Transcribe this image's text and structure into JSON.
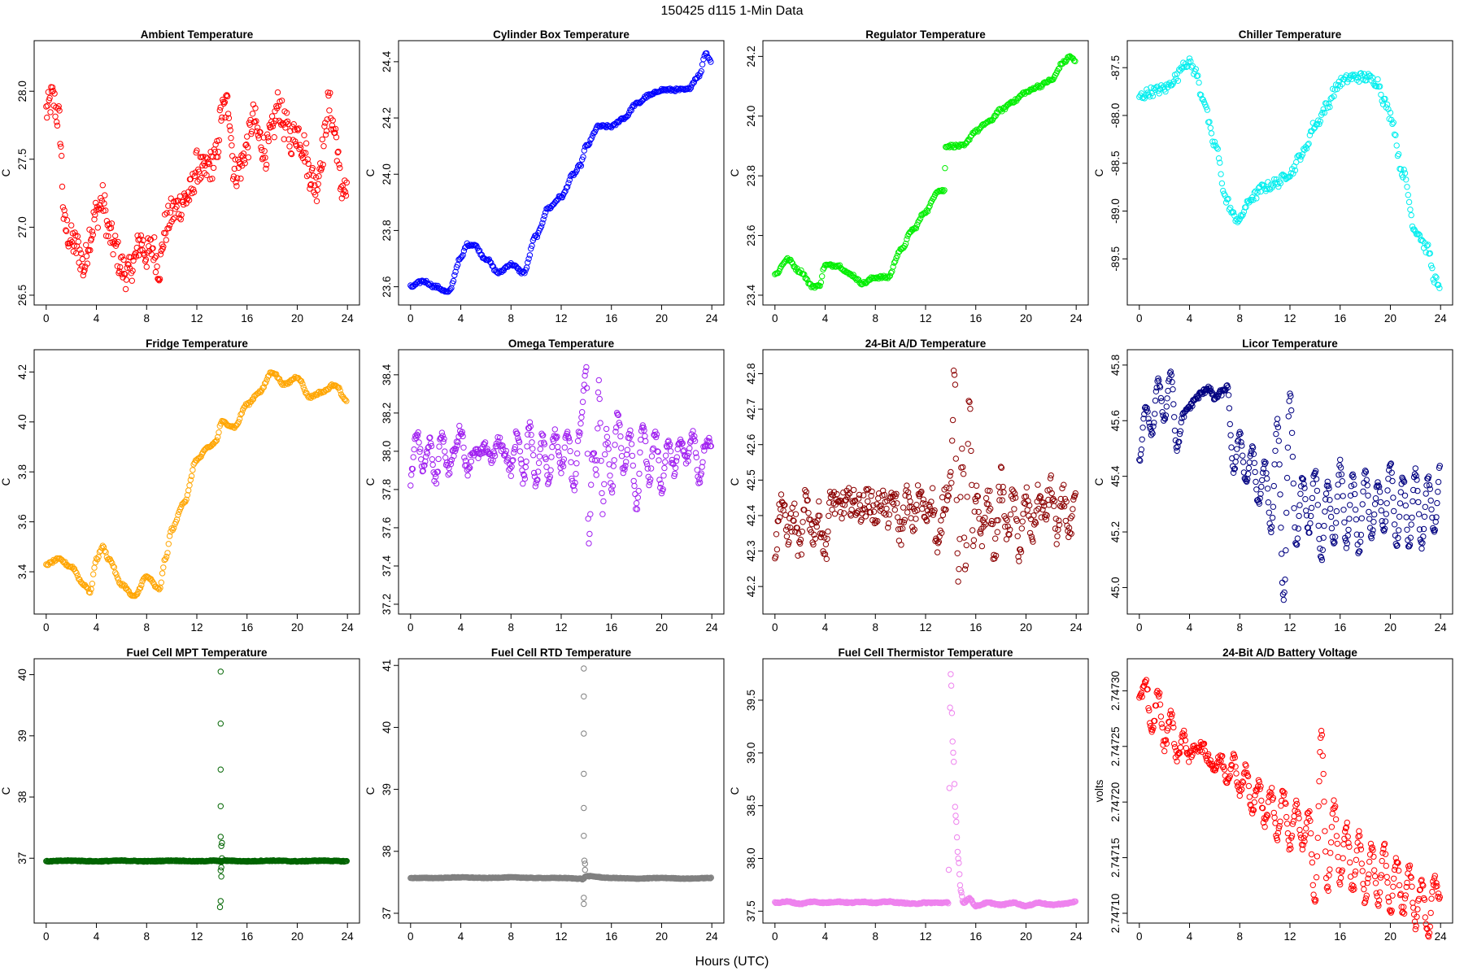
{
  "page_title": "150425   d115   1-Min Data",
  "x_axis_label": "Hours (UTC)",
  "chart_data": [
    {
      "type": "scatter",
      "title": "Ambient Temperature",
      "ylabel": "C",
      "color": "#ff0000",
      "xlim": [
        0,
        24
      ],
      "xticks": [
        0,
        4,
        8,
        12,
        16,
        20,
        24
      ],
      "ylim": [
        26.5,
        28.3
      ],
      "yticks": [
        "26.5",
        "27.0",
        "27.5",
        "28.0"
      ],
      "x": [
        0,
        0.5,
        1,
        1.5,
        2,
        2.5,
        3,
        3.5,
        4,
        4.5,
        5,
        5.5,
        6,
        6.5,
        7,
        7.5,
        8,
        8.5,
        9,
        9.5,
        10,
        10.5,
        11,
        11.5,
        12,
        12.5,
        13,
        13.5,
        14,
        14.5,
        15,
        15.5,
        16,
        16.5,
        17,
        17.5,
        18,
        18.5,
        19,
        19.5,
        20,
        20.5,
        21,
        21.5,
        22,
        22.5,
        23,
        23.5,
        24
      ],
      "y": [
        27.85,
        27.95,
        27.8,
        27.0,
        26.9,
        26.85,
        26.7,
        26.95,
        27.1,
        27.2,
        26.95,
        26.85,
        26.7,
        26.65,
        26.75,
        26.9,
        26.8,
        26.85,
        26.7,
        27.0,
        27.1,
        27.15,
        27.2,
        27.25,
        27.45,
        27.4,
        27.45,
        27.5,
        27.85,
        27.9,
        27.4,
        27.45,
        27.6,
        27.8,
        27.65,
        27.55,
        27.7,
        27.9,
        27.75,
        27.65,
        27.7,
        27.6,
        27.4,
        27.3,
        27.55,
        27.9,
        27.7,
        27.3,
        27.25
      ],
      "noise": 0.12,
      "density": 3
    },
    {
      "type": "scatter",
      "title": "Cylinder Box Temperature",
      "ylabel": "C",
      "color": "#0000ff",
      "xlim": [
        0,
        24
      ],
      "xticks": [
        0,
        4,
        8,
        12,
        16,
        20,
        24
      ],
      "ylim": [
        23.57,
        24.44
      ],
      "yticks": [
        "23.6",
        "23.8",
        "24.0",
        "24.2",
        "24.4"
      ],
      "x": [
        0,
        1,
        2,
        3,
        4,
        4.5,
        5,
        6,
        7,
        8,
        9,
        10,
        11,
        12,
        13,
        13.5,
        14,
        15,
        16,
        17,
        18,
        19,
        20,
        21,
        22,
        23,
        23.5,
        24
      ],
      "y": [
        23.6,
        23.62,
        23.6,
        23.58,
        23.7,
        23.75,
        23.75,
        23.7,
        23.65,
        23.68,
        23.65,
        23.78,
        23.88,
        23.92,
        24.0,
        24.03,
        24.1,
        24.17,
        24.17,
        24.2,
        24.25,
        24.28,
        24.3,
        24.3,
        24.3,
        24.35,
        24.43,
        24.4
      ],
      "noise": 0.005,
      "density": 2
    },
    {
      "type": "scatter",
      "title": "Regulator Temperature",
      "ylabel": "C",
      "color": "#00ee00",
      "xlim": [
        0,
        24
      ],
      "xticks": [
        0,
        4,
        8,
        12,
        16,
        20,
        24
      ],
      "ylim": [
        23.4,
        24.22
      ],
      "yticks": [
        "23.4",
        "23.6",
        "23.8",
        "24.0",
        "24.2"
      ],
      "x": [
        0,
        1,
        2,
        3,
        3.5,
        4,
        5,
        6,
        7,
        8,
        9,
        10,
        11,
        12,
        13,
        13.5,
        13.6,
        14,
        15,
        16,
        17,
        18,
        19,
        20,
        21,
        22,
        23,
        23.5,
        24
      ],
      "y": [
        23.47,
        23.52,
        23.48,
        23.43,
        23.43,
        23.5,
        23.5,
        23.47,
        23.44,
        23.46,
        23.46,
        23.55,
        23.62,
        23.68,
        23.75,
        23.75,
        23.9,
        23.9,
        23.9,
        23.95,
        23.98,
        24.02,
        24.05,
        24.08,
        24.1,
        24.12,
        24.18,
        24.2,
        24.18
      ],
      "noise": 0.005,
      "density": 2
    },
    {
      "type": "scatter",
      "title": "Chiller Temperature",
      "ylabel": "C",
      "color": "#00eeee",
      "xlim": [
        0,
        24
      ],
      "xticks": [
        0,
        4,
        8,
        12,
        16,
        20,
        24
      ],
      "ylim": [
        -89.88,
        -87.32
      ],
      "yticks": [
        "-89.5",
        "-89.0",
        "-88.5",
        "-88.0",
        "-87.5"
      ],
      "x": [
        0,
        1,
        2,
        3,
        3.5,
        4,
        4.5,
        5,
        6,
        7,
        7.5,
        8,
        8.5,
        9,
        10,
        11,
        12,
        13,
        14,
        15,
        15.5,
        16,
        17,
        18,
        19,
        19.5,
        20,
        21,
        22,
        23,
        23.5,
        24
      ],
      "y": [
        -87.8,
        -87.75,
        -87.72,
        -87.6,
        -87.45,
        -87.45,
        -87.55,
        -87.8,
        -88.3,
        -88.9,
        -89.05,
        -89.1,
        -88.95,
        -88.85,
        -88.75,
        -88.7,
        -88.6,
        -88.4,
        -88.1,
        -87.9,
        -87.75,
        -87.65,
        -87.6,
        -87.6,
        -87.65,
        -87.85,
        -88.0,
        -88.6,
        -89.2,
        -89.4,
        -89.7,
        -89.85
      ],
      "noise": 0.05,
      "density": 2
    },
    {
      "type": "scatter",
      "title": "Fridge Temperature",
      "ylabel": "C",
      "color": "#ffa500",
      "xlim": [
        0,
        24
      ],
      "xticks": [
        0,
        4,
        8,
        12,
        16,
        20,
        24
      ],
      "ylim": [
        3.27,
        4.25
      ],
      "yticks": [
        "3.4",
        "3.6",
        "3.8",
        "4.0",
        "4.2"
      ],
      "x": [
        0,
        1,
        2,
        3,
        3.5,
        4,
        4.5,
        5,
        6,
        7,
        8,
        9,
        9.5,
        10,
        11,
        12,
        13,
        13.5,
        14,
        15,
        16,
        17,
        18,
        19,
        20,
        21,
        22,
        23,
        24
      ],
      "y": [
        3.43,
        3.45,
        3.42,
        3.35,
        3.32,
        3.45,
        3.5,
        3.45,
        3.35,
        3.3,
        3.38,
        3.33,
        3.45,
        3.57,
        3.68,
        3.85,
        3.9,
        3.92,
        4.0,
        3.98,
        4.07,
        4.12,
        4.2,
        4.15,
        4.18,
        4.1,
        4.12,
        4.15,
        4.08
      ],
      "noise": 0.005,
      "density": 2
    },
    {
      "type": "scatter",
      "title": "Omega Temperature",
      "ylabel": "C",
      "color": "#a020f0",
      "xlim": [
        0,
        24
      ],
      "xticks": [
        0,
        4,
        8,
        12,
        16,
        20,
        24
      ],
      "ylim": [
        37.2,
        38.48
      ],
      "yticks": [
        "37.2",
        "37.4",
        "37.6",
        "37.8",
        "38.0",
        "38.2",
        "38.4"
      ],
      "x": [
        0,
        0.5,
        1,
        1.5,
        2,
        2.5,
        3,
        3.5,
        4,
        4.5,
        5,
        5.5,
        6,
        6.5,
        7,
        7.5,
        8,
        8.5,
        9,
        9.5,
        10,
        10.5,
        11,
        11.5,
        12,
        12.5,
        13,
        13.5,
        14,
        14.2,
        14.5,
        14.8,
        15,
        15.3,
        15.6,
        16,
        16.5,
        17,
        17.5,
        18,
        18.5,
        19,
        19.5,
        20,
        20.5,
        21,
        21.5,
        22,
        22.5,
        23,
        23.5,
        24
      ],
      "y": [
        37.85,
        38.1,
        37.9,
        38.05,
        37.85,
        38.1,
        37.9,
        38.0,
        38.12,
        37.9,
        38.0,
        37.98,
        38.02,
        37.96,
        38.05,
        38.0,
        37.9,
        38.1,
        37.85,
        38.15,
        37.82,
        38.1,
        37.85,
        38.1,
        37.9,
        38.1,
        37.8,
        38.12,
        38.45,
        37.5,
        38.0,
        37.9,
        38.35,
        37.7,
        38.1,
        37.8,
        38.2,
        37.9,
        38.1,
        37.7,
        38.15,
        37.85,
        38.1,
        37.8,
        38.05,
        37.9,
        38.05,
        37.95,
        38.1,
        37.85,
        38.05,
        38.05
      ],
      "noise": 0.03,
      "density": 3
    },
    {
      "type": "scatter",
      "title": "24-Bit A/D Temperature",
      "ylabel": "C",
      "color": "#8b0000",
      "xlim": [
        0,
        24
      ],
      "xticks": [
        0,
        4,
        8,
        12,
        16,
        20,
        24
      ],
      "ylim": [
        42.15,
        42.84
      ],
      "yticks": [
        "42.2",
        "42.3",
        "42.4",
        "42.5",
        "42.6",
        "42.7",
        "42.8"
      ],
      "x": [
        0,
        0.5,
        1,
        1.5,
        2,
        2.5,
        3,
        3.5,
        4,
        4.5,
        5,
        5.5,
        6,
        6.5,
        7,
        7.5,
        8,
        8.5,
        9,
        9.5,
        10,
        10.5,
        11,
        11.5,
        12,
        12.5,
        13,
        13.5,
        14,
        14.3,
        14.6,
        14.9,
        15.2,
        15.5,
        15.8,
        16,
        16.5,
        17,
        17.5,
        18,
        18.5,
        19,
        19.5,
        20,
        20.5,
        21,
        21.5,
        22,
        22.5,
        23,
        23.5,
        24
      ],
      "y": [
        42.3,
        42.45,
        42.35,
        42.4,
        42.3,
        42.45,
        42.35,
        42.4,
        42.3,
        42.45,
        42.42,
        42.43,
        42.44,
        42.43,
        42.42,
        42.45,
        42.4,
        42.45,
        42.4,
        42.45,
        42.35,
        42.45,
        42.38,
        42.46,
        42.4,
        42.45,
        42.3,
        42.45,
        42.5,
        42.8,
        42.2,
        42.6,
        42.25,
        42.75,
        42.3,
        42.45,
        42.35,
        42.45,
        42.3,
        42.5,
        42.35,
        42.45,
        42.3,
        42.45,
        42.35,
        42.45,
        42.4,
        42.48,
        42.35,
        42.45,
        42.35,
        42.45
      ],
      "noise": 0.04,
      "density": 3
    },
    {
      "type": "scatter",
      "title": "Licor Temperature",
      "ylabel": "C",
      "color": "#000080",
      "xlim": [
        0,
        24
      ],
      "xticks": [
        0,
        4,
        8,
        12,
        16,
        20,
        24
      ],
      "ylim": [
        44.94,
        45.82
      ],
      "yticks": [
        "45.0",
        "45.2",
        "45.4",
        "45.6",
        "45.8"
      ],
      "x": [
        0,
        0.5,
        1,
        1.5,
        2,
        2.5,
        3,
        3.5,
        4,
        4.5,
        5,
        5.5,
        6,
        6.5,
        7,
        7.5,
        8,
        8.5,
        9,
        9.5,
        10,
        10.5,
        11,
        11.5,
        12,
        12.5,
        13,
        13.5,
        14,
        14.5,
        15,
        15.5,
        16,
        16.5,
        17,
        17.5,
        18,
        18.5,
        19,
        19.5,
        20,
        20.5,
        21,
        21.5,
        22,
        22.5,
        23,
        23.5,
        24
      ],
      "y": [
        45.45,
        45.65,
        45.55,
        45.75,
        45.6,
        45.78,
        45.5,
        45.62,
        45.65,
        45.68,
        45.7,
        45.72,
        45.68,
        45.7,
        45.72,
        45.42,
        45.55,
        45.38,
        45.5,
        45.3,
        45.45,
        45.2,
        45.6,
        44.95,
        45.7,
        45.15,
        45.4,
        45.2,
        45.42,
        45.1,
        45.38,
        45.15,
        45.45,
        45.15,
        45.4,
        45.12,
        45.42,
        45.18,
        45.38,
        45.2,
        45.45,
        45.15,
        45.4,
        45.15,
        45.42,
        45.15,
        45.4,
        45.2,
        45.45
      ],
      "noise": 0.01,
      "density": 3
    },
    {
      "type": "scatter",
      "title": "Fuel Cell MPT Temperature",
      "ylabel": "C",
      "color": "#006400",
      "xlim": [
        0,
        24
      ],
      "xticks": [
        0,
        4,
        8,
        12,
        16,
        20,
        24
      ],
      "ylim": [
        36.1,
        40.1
      ],
      "yticks": [
        "37",
        "38",
        "39",
        "40"
      ],
      "x": [
        0,
        2,
        4,
        6,
        8,
        10,
        12,
        13.5,
        13.8,
        13.9,
        14.2,
        16,
        18,
        20,
        22,
        24
      ],
      "y": [
        36.95,
        36.96,
        36.95,
        36.96,
        36.95,
        36.96,
        36.95,
        36.96,
        36.95,
        36.95,
        36.96,
        36.95,
        36.96,
        36.95,
        36.96,
        36.95
      ],
      "noise": 0.008,
      "density": 3,
      "outliers": [
        [
          13.9,
          40.05
        ],
        [
          13.9,
          39.2
        ],
        [
          13.9,
          38.45
        ],
        [
          13.9,
          37.85
        ],
        [
          13.9,
          37.35
        ],
        [
          13.95,
          37.2
        ],
        [
          14.0,
          37.0
        ],
        [
          13.9,
          36.8
        ],
        [
          13.95,
          36.7
        ],
        [
          13.9,
          36.3
        ],
        [
          13.85,
          36.2
        ],
        [
          14.0,
          37.25
        ],
        [
          13.95,
          36.85
        ]
      ]
    },
    {
      "type": "scatter",
      "title": "Fuel Cell RTD Temperature",
      "ylabel": "C",
      "color": "#808080",
      "xlim": [
        0,
        24
      ],
      "xticks": [
        0,
        4,
        8,
        12,
        16,
        20,
        24
      ],
      "ylim": [
        37.0,
        40.95
      ],
      "yticks": [
        "37",
        "38",
        "39",
        "40",
        "41"
      ],
      "x": [
        0,
        2,
        4,
        6,
        8,
        10,
        12,
        13.5,
        13.7,
        14.0,
        16,
        18,
        20,
        22,
        24
      ],
      "y": [
        37.57,
        37.57,
        37.58,
        37.57,
        37.58,
        37.57,
        37.57,
        37.56,
        37.55,
        37.6,
        37.57,
        37.56,
        37.57,
        37.56,
        37.57
      ],
      "noise": 0.006,
      "density": 3,
      "outliers": [
        [
          13.8,
          40.95
        ],
        [
          13.8,
          40.5
        ],
        [
          13.8,
          39.9
        ],
        [
          13.8,
          39.25
        ],
        [
          13.8,
          38.7
        ],
        [
          13.8,
          38.25
        ],
        [
          13.85,
          37.85
        ],
        [
          13.9,
          37.8
        ],
        [
          13.8,
          37.25
        ],
        [
          13.8,
          37.15
        ],
        [
          13.9,
          37.7
        ]
      ]
    },
    {
      "type": "scatter",
      "title": "Fuel Cell Thermistor Temperature",
      "ylabel": "C",
      "color": "#ee82ee",
      "xlim": [
        0,
        24
      ],
      "xticks": [
        0,
        4,
        8,
        12,
        16,
        20,
        24
      ],
      "ylim": [
        37.48,
        39.8
      ],
      "yticks": [
        "37.5",
        "38.0",
        "38.5",
        "39.0",
        "39.5"
      ],
      "x": [
        0,
        1,
        2,
        3,
        4,
        5,
        6,
        7,
        8,
        9,
        10,
        11,
        12,
        13,
        13.8,
        14.0,
        14.2,
        14.4,
        14.6,
        14.8,
        15.0,
        15.5,
        16,
        17,
        18,
        19,
        20,
        21,
        22,
        23,
        24
      ],
      "y": [
        37.58,
        37.59,
        37.57,
        37.59,
        37.58,
        37.59,
        37.58,
        37.59,
        37.58,
        37.59,
        37.58,
        37.57,
        37.58,
        37.58,
        37.58,
        39.75,
        39.0,
        38.4,
        38.0,
        37.7,
        37.58,
        37.62,
        37.55,
        37.58,
        37.56,
        37.58,
        37.55,
        37.58,
        37.56,
        37.57,
        37.59
      ],
      "noise": 0.006,
      "density": 3
    },
    {
      "type": "scatter",
      "title": "24-Bit A/D Battery Voltage",
      "ylabel": "volts",
      "color": "#ff0000",
      "xlim": [
        0,
        24
      ],
      "xticks": [
        0,
        4,
        8,
        12,
        16,
        20,
        24
      ],
      "ylim": [
        2.7471,
        2.74732
      ],
      "yticks": [
        "2.74710",
        "2.74715",
        "2.74720",
        "2.74725",
        "2.74730"
      ],
      "x": [
        0,
        0.5,
        1,
        1.5,
        2,
        2.5,
        3,
        3.5,
        4,
        4.5,
        5,
        5.5,
        6,
        6.5,
        7,
        7.5,
        8,
        8.5,
        9,
        9.5,
        10,
        10.5,
        11,
        11.5,
        12,
        12.5,
        13,
        13.5,
        14,
        14.5,
        15,
        15.5,
        16,
        16.5,
        17,
        17.5,
        18,
        18.5,
        19,
        19.5,
        20,
        20.5,
        21,
        21.5,
        22,
        22.5,
        23,
        23.5,
        24
      ],
      "y": [
        2.74729,
        2.74731,
        2.74726,
        2.7473,
        2.74725,
        2.74728,
        2.74724,
        2.74726,
        2.74724,
        2.74725,
        2.74725,
        2.74724,
        2.74723,
        2.74724,
        2.74722,
        2.74724,
        2.74721,
        2.74723,
        2.74719,
        2.74722,
        2.74718,
        2.74721,
        2.74717,
        2.74721,
        2.74716,
        2.7472,
        2.74716,
        2.74719,
        2.74711,
        2.74726,
        2.74712,
        2.7472,
        2.74713,
        2.74718,
        2.74712,
        2.74717,
        2.74711,
        2.74716,
        2.74711,
        2.74716,
        2.7471,
        2.74715,
        2.7471,
        2.74714,
        2.74709,
        2.74713,
        2.74708,
        2.74713,
        2.74711
      ],
      "noise": 5e-06,
      "density": 3
    }
  ]
}
